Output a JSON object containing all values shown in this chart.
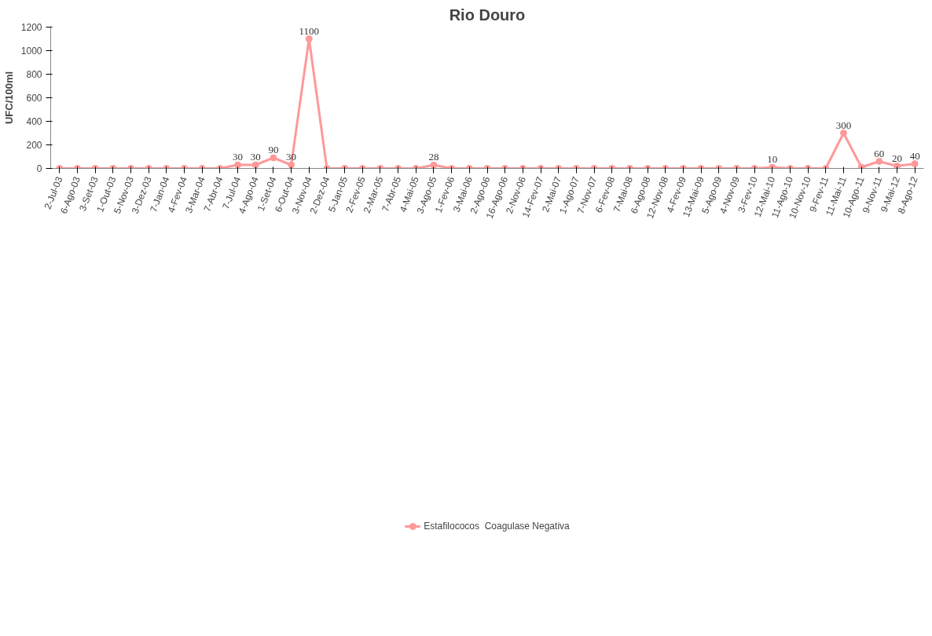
{
  "chart_data": {
    "type": "line",
    "title": "Rio Douro",
    "ylabel": "UFC/100ml",
    "categories": [
      "2-Jul-03",
      "6-Ago-03",
      "3-Set-03",
      "1-Out-03",
      "5-Nov-03",
      "3-Dez-03",
      "7-Jan-04",
      "4-Fev-04",
      "3-Mar-04",
      "7-Abr-04",
      "7-Jul-04",
      "4-Ago-04",
      "1-Set-04",
      "6-Out-04",
      "3-Nov-04",
      "2-Dez-04",
      "5-Jan-05",
      "2-Fev-05",
      "2-Mar-05",
      "7-Abr-05",
      "4-Mai-05",
      "3-Ago-05",
      "1-Fev-06",
      "3-Mai-06",
      "2-Ago-06",
      "16-Ago-06",
      "2-Nov-06",
      "14-Fev-07",
      "2-Mai-07",
      "1-Ago-07",
      "7-Nov-07",
      "6-Fev-08",
      "7-Mai-08",
      "6-Ago-08",
      "12-Nov-08",
      "4-Fev-09",
      "13-Mai-09",
      "5-Ago-09",
      "4-Nov-09",
      "3-Fev-10",
      "12-Mai-10",
      "11-Ago-10",
      "10-Nov-10",
      "9-Fev-11",
      "11-Mai-11",
      "10-Ago-11",
      "9-Nov-11",
      "9-Mai-12",
      "8-Ago-12"
    ],
    "series": [
      {
        "name": "Estafilococos  Coagulase Negativa",
        "color": "#ff9999",
        "values": [
          0,
          0,
          0,
          0,
          0,
          0,
          0,
          0,
          0,
          0,
          30,
          30,
          90,
          30,
          1100,
          0,
          0,
          0,
          0,
          0,
          0,
          28,
          0,
          0,
          0,
          0,
          0,
          0,
          0,
          0,
          0,
          0,
          0,
          0,
          0,
          0,
          0,
          0,
          0,
          0,
          10,
          0,
          0,
          0,
          300,
          10,
          60,
          20,
          40
        ],
        "value_labels": [
          null,
          null,
          null,
          null,
          null,
          null,
          null,
          null,
          null,
          null,
          "30",
          "30",
          "90",
          "30",
          "1100",
          null,
          null,
          null,
          null,
          null,
          null,
          "28",
          null,
          null,
          null,
          null,
          null,
          null,
          null,
          null,
          null,
          null,
          null,
          null,
          null,
          null,
          null,
          null,
          null,
          null,
          "10",
          null,
          null,
          null,
          "300",
          null,
          "60",
          "20",
          "40"
        ]
      }
    ],
    "ylim": [
      0,
      1200
    ],
    "yticks": [
      0,
      200,
      400,
      600,
      800,
      1000,
      1200
    ],
    "legend": "bottom",
    "marker": "circle",
    "line_style": "solid"
  }
}
